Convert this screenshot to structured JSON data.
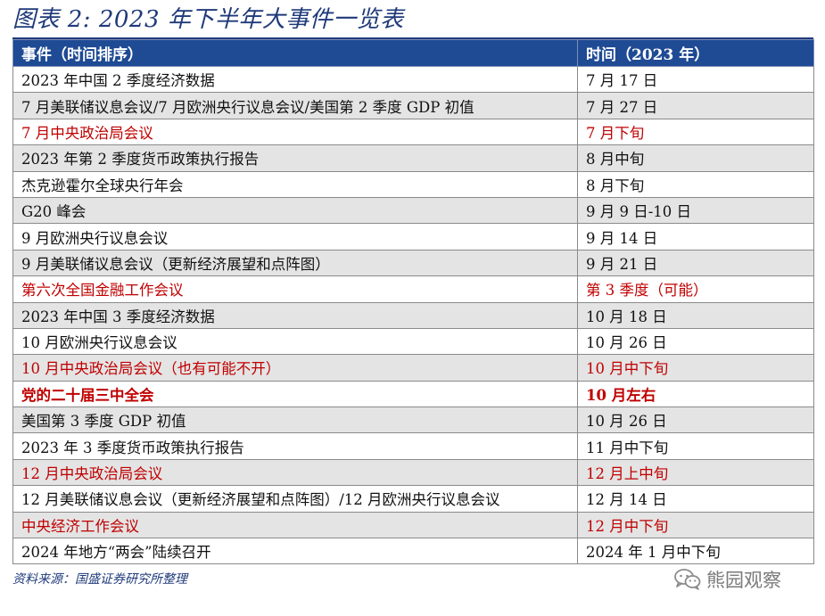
{
  "figure": {
    "title": "图表 2:  2023 年下半年大事件一览表",
    "source": "资料来源：国盛证券研究所整理"
  },
  "table": {
    "headers": [
      "事件（时间排序）",
      "时间（2023 年）"
    ],
    "rows": [
      {
        "event": "2023 年中国 2 季度经济数据",
        "time": "7 月 17 日",
        "style": "normal"
      },
      {
        "event": "7 月美联储议息会议/7 月欧洲央行议息会议/美国第 2 季度 GDP 初值",
        "time": "7 月 27 日",
        "style": "normal"
      },
      {
        "event": "7 月中央政治局会议",
        "time": "7 月下旬",
        "style": "red"
      },
      {
        "event": "2023 年第 2 季度货币政策执行报告",
        "time": "8 月中旬",
        "style": "normal"
      },
      {
        "event": "杰克逊霍尔全球央行年会",
        "time": "8 月下旬",
        "style": "normal"
      },
      {
        "event": "G20 峰会",
        "time": "9 月 9 日-10 日",
        "style": "normal"
      },
      {
        "event": "9 月欧洲央行议息会议",
        "time": "9 月 14 日",
        "style": "normal"
      },
      {
        "event": "9 月美联储议息会议（更新经济展望和点阵图）",
        "time": "9 月 21 日",
        "style": "normal"
      },
      {
        "event": "第六次全国金融工作会议",
        "time": "第 3 季度（可能）",
        "style": "red"
      },
      {
        "event": "2023 年中国 3 季度经济数据",
        "time": "10 月 18 日",
        "style": "normal"
      },
      {
        "event": "10 月欧洲央行议息会议",
        "time": "10 月 26 日",
        "style": "normal"
      },
      {
        "event": "10 月中央政治局会议（也有可能不开）",
        "time": "10 月中下旬",
        "style": "red"
      },
      {
        "event": "党的二十届三中全会",
        "time": "10 月左右",
        "style": "red-bold"
      },
      {
        "event": "美国第 3 季度 GDP 初值",
        "time": "10 月 26 日",
        "style": "normal"
      },
      {
        "event": "2023 年 3 季度货币政策执行报告",
        "time": "11 月中下旬",
        "style": "normal"
      },
      {
        "event": "12 月中央政治局会议",
        "time": "12 月上中旬",
        "style": "red"
      },
      {
        "event": "12 月美联储议息会议（更新经济展望和点阵图）/12 月欧洲央行议息会议",
        "time": "12 月 14 日",
        "style": "normal"
      },
      {
        "event": "中央经济工作会议",
        "time": "12 月中下旬",
        "style": "red"
      },
      {
        "event": "2024 年地方“两会”陆续召开",
        "time": "2024 年 1 月中下旬",
        "style": "normal"
      }
    ]
  },
  "watermark": {
    "text": "熊园观察",
    "icon": "wechat-icon"
  },
  "colors": {
    "title_blue": "#1f3a7a",
    "header_bg": "#1f4a94",
    "highlight_red": "#c00000",
    "stripe_gray": "#e4e4e4"
  }
}
